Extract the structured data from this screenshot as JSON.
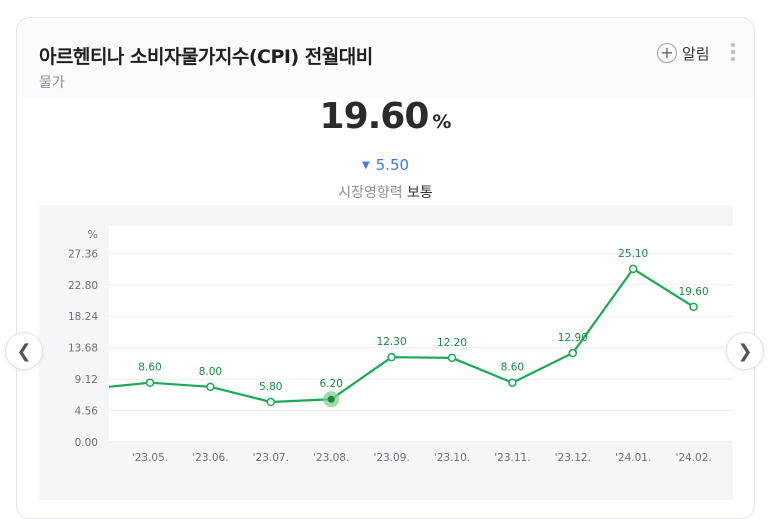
{
  "card": {
    "title": "아르헨티나 소비자물가지수(CPI) 전월대비",
    "subtitle": "물가",
    "alarm_label": "알림",
    "alarm_icon": "plus-circle-icon",
    "more_icon": "vertical-dots-icon"
  },
  "summary": {
    "value": "19.60",
    "unit": "%",
    "change": "5.50",
    "change_direction": "down",
    "change_color": "#3d7af0",
    "impact_label": "시장영향력",
    "impact_value": "보통"
  },
  "nav": {
    "prev_icon": "chevron-left-icon",
    "next_icon": "chevron-right-icon"
  },
  "chart_data": {
    "type": "line",
    "y_unit_label": "%",
    "categories": [
      "'23.05.",
      "'23.06.",
      "'23.07.",
      "'23.08.",
      "'23.09.",
      "'23.10.",
      "'23.11.",
      "'23.12.",
      "'24.01.",
      "'24.02."
    ],
    "values": [
      8.6,
      8.0,
      5.8,
      6.2,
      12.3,
      12.2,
      8.6,
      12.9,
      25.1,
      19.6
    ],
    "value_labels": [
      "8.60",
      "8.00",
      "5.80",
      "6.20",
      "12.30",
      "12.20",
      "8.60",
      "12.90",
      "25.10",
      "19.60"
    ],
    "leading_value": 8.0,
    "y_ticks": [
      "0.00",
      "4.56",
      "9.12",
      "13.68",
      "18.24",
      "22.80",
      "27.36"
    ],
    "ylim": [
      0,
      27.36
    ],
    "highlight_index": 3,
    "line_color": "#1aaa55",
    "highlight_color": "#7fd08f",
    "grid": true
  }
}
